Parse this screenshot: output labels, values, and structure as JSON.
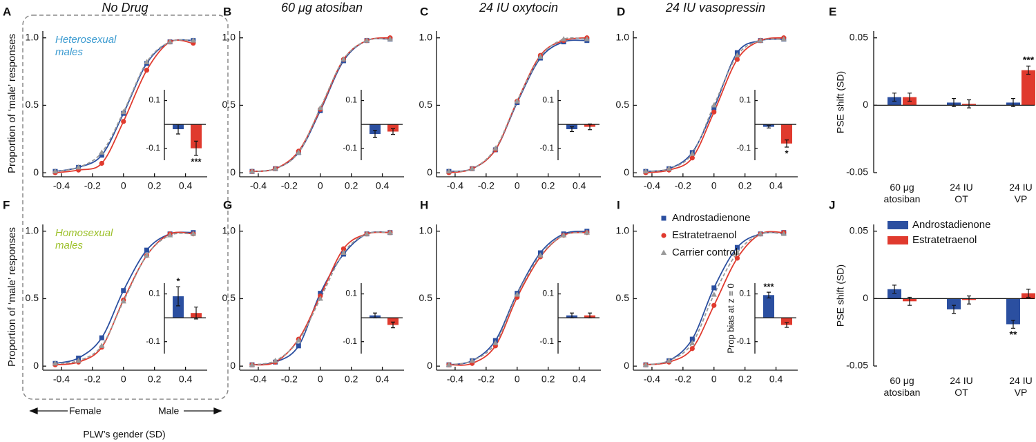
{
  "chart_data": [
    {
      "type": "line",
      "panel": "A",
      "title": "No Drug",
      "ylabel": "Proportion of ‘male’ responses",
      "annotation": "Heterosexual\nmales",
      "annotation_color": "#3a9ad0",
      "x": [
        -0.44,
        -0.29,
        -0.14,
        0,
        0.15,
        0.3,
        0.45
      ],
      "xlim": [
        -0.52,
        0.54
      ],
      "xticks": [
        -0.4,
        -0.2,
        0,
        0.2,
        0.4
      ],
      "ylim": [
        -0.03,
        1.05
      ],
      "yticks": [
        0,
        0.5,
        {
          "value": 1,
          "label": "1.0"
        }
      ],
      "series": [
        {
          "color": "#2b4fa0",
          "marker": "square",
          "values": [
            0.01,
            0.04,
            0.13,
            0.44,
            0.81,
            0.97,
            0.98
          ]
        },
        {
          "color": "#e03a2e",
          "marker": "circle",
          "values": [
            0,
            0.02,
            0.07,
            0.38,
            0.76,
            0.97,
            0.96
          ]
        },
        {
          "color": "#999999",
          "marker": "triangle",
          "dash": true,
          "values": [
            0.01,
            0.04,
            0.15,
            0.45,
            0.82,
            0.97,
            0.98
          ]
        }
      ],
      "inset": {
        "ylim": [
          -0.15,
          0.145
        ],
        "yticks": [
          -0.1,
          0.1
        ],
        "colors": [
          "#2b4fa0",
          "#e03a2e"
        ],
        "values": [
          -0.02,
          -0.1
        ],
        "errors": [
          0.02,
          0.03
        ],
        "stars": [
          null,
          "***"
        ]
      }
    },
    {
      "type": "line",
      "panel": "B",
      "title": "60 μg atosiban",
      "x": [
        -0.44,
        -0.29,
        -0.14,
        0,
        0.15,
        0.3,
        0.45
      ],
      "xlim": [
        -0.52,
        0.54
      ],
      "xticks": [
        -0.4,
        -0.2,
        0,
        0.2,
        0.4
      ],
      "ylim": [
        -0.03,
        1.05
      ],
      "yticks": [
        0,
        0.5,
        {
          "value": 1,
          "label": "1.0"
        }
      ],
      "series": [
        {
          "color": "#2b4fa0",
          "marker": "square",
          "values": [
            0.01,
            0.03,
            0.15,
            0.46,
            0.83,
            0.98,
            0.99
          ]
        },
        {
          "color": "#e03a2e",
          "marker": "circle",
          "values": [
            0.01,
            0.03,
            0.16,
            0.47,
            0.84,
            0.98,
            1.0
          ]
        },
        {
          "color": "#999999",
          "marker": "triangle",
          "dash": true,
          "values": [
            0.01,
            0.03,
            0.15,
            0.48,
            0.84,
            0.98,
            0.99
          ]
        }
      ],
      "inset": {
        "ylim": [
          -0.15,
          0.145
        ],
        "yticks": [
          -0.1,
          0.1
        ],
        "colors": [
          "#2b4fa0",
          "#e03a2e"
        ],
        "values": [
          -0.04,
          -0.03
        ],
        "errors": [
          0.015,
          0.012
        ],
        "stars": [
          null,
          null
        ]
      }
    },
    {
      "type": "line",
      "panel": "C",
      "title": "24 IU oxytocin",
      "x": [
        -0.44,
        -0.29,
        -0.14,
        0,
        0.15,
        0.3,
        0.45
      ],
      "xlim": [
        -0.52,
        0.54
      ],
      "xticks": [
        -0.4,
        -0.2,
        0,
        0.2,
        0.4
      ],
      "ylim": [
        -0.03,
        1.05
      ],
      "yticks": [
        0,
        0.5,
        {
          "value": 1,
          "label": "1.0"
        }
      ],
      "series": [
        {
          "color": "#2b4fa0",
          "marker": "square",
          "values": [
            0.01,
            0.03,
            0.17,
            0.52,
            0.85,
            0.97,
            0.98
          ]
        },
        {
          "color": "#e03a2e",
          "marker": "circle",
          "values": [
            0,
            0.03,
            0.17,
            0.53,
            0.87,
            0.98,
            1.0
          ]
        },
        {
          "color": "#999999",
          "marker": "triangle",
          "dash": true,
          "values": [
            0.01,
            0.03,
            0.18,
            0.53,
            0.86,
            0.99,
            0.99
          ]
        }
      ],
      "inset": {
        "ylim": [
          -0.15,
          0.145
        ],
        "yticks": [
          -0.1,
          0.1
        ],
        "colors": [
          "#2b4fa0",
          "#e03a2e"
        ],
        "values": [
          -0.02,
          -0.01
        ],
        "errors": [
          0.01,
          0.012
        ],
        "stars": [
          null,
          null
        ]
      }
    },
    {
      "type": "line",
      "panel": "D",
      "title": "24 IU vasopressin",
      "x": [
        -0.44,
        -0.29,
        -0.14,
        0,
        0.15,
        0.3,
        0.45
      ],
      "xlim": [
        -0.52,
        0.54
      ],
      "xticks": [
        -0.4,
        -0.2,
        0,
        0.2,
        0.4
      ],
      "ylim": [
        -0.03,
        1.05
      ],
      "yticks": [
        0,
        0.5,
        {
          "value": 1,
          "label": "1.0"
        }
      ],
      "series": [
        {
          "color": "#2b4fa0",
          "marker": "square",
          "values": [
            0.01,
            0.03,
            0.15,
            0.48,
            0.89,
            0.98,
            0.99
          ]
        },
        {
          "color": "#e03a2e",
          "marker": "circle",
          "values": [
            0,
            0.02,
            0.11,
            0.45,
            0.84,
            0.98,
            1.0
          ]
        },
        {
          "color": "#999999",
          "marker": "triangle",
          "dash": true,
          "values": [
            0.01,
            0.03,
            0.14,
            0.5,
            0.87,
            0.98,
            0.99
          ]
        }
      ],
      "inset": {
        "ylim": [
          -0.15,
          0.145
        ],
        "yticks": [
          -0.1,
          0.1
        ],
        "colors": [
          "#2b4fa0",
          "#e03a2e"
        ],
        "values": [
          -0.01,
          -0.08
        ],
        "errors": [
          0.005,
          0.015
        ],
        "stars": [
          null,
          "*"
        ]
      }
    },
    {
      "type": "bar",
      "panel": "E",
      "ylabel": "PSE shift (SD)",
      "categories": [
        "60 μg\natosiban",
        "24 IU\nOT",
        "24 IU\nVP"
      ],
      "ylim": [
        -0.05,
        0.055
      ],
      "yticks": [
        -0.05,
        0,
        0.05
      ],
      "series": [
        {
          "color": "#2b4fa0",
          "values": [
            0.006,
            0.002,
            0.002
          ],
          "errors": [
            0.003,
            0.003,
            0.003
          ],
          "stars": [
            null,
            null,
            null
          ]
        },
        {
          "color": "#e03a2e",
          "values": [
            0.006,
            0.001,
            0.026
          ],
          "errors": [
            0.003,
            0.003,
            0.003
          ],
          "stars": [
            null,
            null,
            "***"
          ]
        }
      ]
    },
    {
      "type": "line",
      "panel": "F",
      "ylabel": "Proportion of ‘male’ responses",
      "annotation": "Homosexual\nmales",
      "annotation_color": "#9cc02a",
      "xlabel": "PLW’s gender (SD)",
      "arrow_left": "Female",
      "arrow_right": "Male",
      "x": [
        -0.44,
        -0.29,
        -0.14,
        0,
        0.15,
        0.3,
        0.45
      ],
      "xlim": [
        -0.52,
        0.54
      ],
      "xticks": [
        -0.4,
        -0.2,
        0,
        0.2,
        0.4
      ],
      "ylim": [
        -0.03,
        1.05
      ],
      "yticks": [
        0,
        0.5,
        {
          "value": 1,
          "label": "1.0"
        }
      ],
      "series": [
        {
          "color": "#2b4fa0",
          "marker": "square",
          "values": [
            0.02,
            0.06,
            0.21,
            0.56,
            0.86,
            0.98,
            0.99
          ]
        },
        {
          "color": "#e03a2e",
          "marker": "circle",
          "values": [
            0.01,
            0.03,
            0.14,
            0.49,
            0.82,
            0.98,
            0.98
          ]
        },
        {
          "color": "#999999",
          "marker": "triangle",
          "dash": true,
          "values": [
            0.02,
            0.04,
            0.15,
            0.48,
            0.82,
            0.97,
            0.98
          ]
        }
      ],
      "inset": {
        "ylim": [
          -0.15,
          0.145
        ],
        "yticks": [
          -0.1,
          0.1
        ],
        "colors": [
          "#2b4fa0",
          "#e03a2e"
        ],
        "values": [
          0.09,
          0.02
        ],
        "errors": [
          0.04,
          0.025
        ],
        "stars": [
          "*",
          null
        ]
      }
    },
    {
      "type": "line",
      "panel": "G",
      "x": [
        -0.44,
        -0.29,
        -0.14,
        0,
        0.15,
        0.3,
        0.45
      ],
      "xlim": [
        -0.52,
        0.54
      ],
      "xticks": [
        -0.4,
        -0.2,
        0,
        0.2,
        0.4
      ],
      "ylim": [
        -0.03,
        1.05
      ],
      "yticks": [
        0,
        0.5,
        {
          "value": 1,
          "label": "1.0"
        }
      ],
      "series": [
        {
          "color": "#2b4fa0",
          "marker": "square",
          "values": [
            0.01,
            0.03,
            0.15,
            0.54,
            0.83,
            0.98,
            0.99
          ]
        },
        {
          "color": "#e03a2e",
          "marker": "circle",
          "values": [
            0.01,
            0.03,
            0.2,
            0.52,
            0.87,
            0.98,
            0.99
          ]
        },
        {
          "color": "#999999",
          "marker": "triangle",
          "dash": true,
          "values": [
            0.01,
            0.04,
            0.19,
            0.5,
            0.84,
            0.98,
            0.99
          ]
        }
      ],
      "inset": {
        "ylim": [
          -0.15,
          0.145
        ],
        "yticks": [
          -0.1,
          0.1
        ],
        "colors": [
          "#2b4fa0",
          "#e03a2e"
        ],
        "values": [
          0.01,
          -0.03
        ],
        "errors": [
          0.01,
          0.012
        ],
        "stars": [
          null,
          null
        ]
      }
    },
    {
      "type": "line",
      "panel": "H",
      "x": [
        -0.44,
        -0.29,
        -0.14,
        0,
        0.15,
        0.3,
        0.45
      ],
      "xlim": [
        -0.52,
        0.54
      ],
      "xticks": [
        -0.4,
        -0.2,
        0,
        0.2,
        0.4
      ],
      "ylim": [
        -0.03,
        1.05
      ],
      "yticks": [
        0,
        0.5,
        {
          "value": 1,
          "label": "1.0"
        }
      ],
      "series": [
        {
          "color": "#2b4fa0",
          "marker": "square",
          "values": [
            0.01,
            0.04,
            0.19,
            0.54,
            0.84,
            0.98,
            1.0
          ]
        },
        {
          "color": "#e03a2e",
          "marker": "circle",
          "values": [
            0.01,
            0.02,
            0.15,
            0.51,
            0.81,
            0.97,
            0.99
          ]
        },
        {
          "color": "#999999",
          "marker": "triangle",
          "dash": true,
          "values": [
            0.01,
            0.04,
            0.17,
            0.53,
            0.82,
            0.97,
            0.99
          ]
        }
      ],
      "inset": {
        "ylim": [
          -0.15,
          0.145
        ],
        "yticks": [
          -0.1,
          0.1
        ],
        "colors": [
          "#2b4fa0",
          "#e03a2e"
        ],
        "values": [
          0.01,
          0.01
        ],
        "errors": [
          0.01,
          0.01
        ],
        "stars": [
          null,
          null
        ]
      }
    },
    {
      "type": "line",
      "panel": "I",
      "legend": true,
      "x": [
        -0.44,
        -0.29,
        -0.14,
        0,
        0.15,
        0.3,
        0.45
      ],
      "xlim": [
        -0.52,
        0.54
      ],
      "xticks": [
        -0.4,
        -0.2,
        0,
        0.2,
        0.4
      ],
      "ylim": [
        -0.03,
        1.05
      ],
      "yticks": [
        0,
        0.5,
        {
          "value": 1,
          "label": "1.0"
        }
      ],
      "series": [
        {
          "name": "Androstadienone",
          "color": "#2b4fa0",
          "marker": "square",
          "values": [
            0.01,
            0.04,
            0.2,
            0.58,
            0.88,
            0.98,
            0.99
          ]
        },
        {
          "name": "Estratetraenol",
          "color": "#e03a2e",
          "marker": "circle",
          "values": [
            0.01,
            0.03,
            0.13,
            0.45,
            0.8,
            0.98,
            0.99
          ]
        },
        {
          "name": "Carrier control",
          "color": "#999999",
          "marker": "triangle",
          "dash": true,
          "values": [
            0.01,
            0.04,
            0.17,
            0.53,
            0.84,
            0.98,
            0.98
          ]
        }
      ],
      "inset": {
        "ylabel": "Prop bias at z = 0",
        "ylim": [
          -0.15,
          0.145
        ],
        "yticks": [
          -0.1,
          0.1
        ],
        "colors": [
          "#2b4fa0",
          "#e03a2e"
        ],
        "values": [
          0.095,
          -0.03
        ],
        "errors": [
          0.012,
          0.01
        ],
        "stars": [
          "***",
          null
        ]
      }
    },
    {
      "type": "bar",
      "panel": "J",
      "ylabel": "PSE shift (SD)",
      "legend": true,
      "categories": [
        "60 μg\natosiban",
        "24 IU\nOT",
        "24 IU\nVP"
      ],
      "ylim": [
        -0.05,
        0.055
      ],
      "yticks": [
        -0.05,
        0,
        0.05
      ],
      "series": [
        {
          "name": "Androstadienone",
          "color": "#2b4fa0",
          "values": [
            0.007,
            -0.008,
            -0.019
          ],
          "errors": [
            0.003,
            0.003,
            0.003
          ],
          "stars": [
            null,
            null,
            "**"
          ]
        },
        {
          "name": "Estratetraenol",
          "color": "#e03a2e",
          "values": [
            -0.002,
            -0.001,
            0.004
          ],
          "errors": [
            0.003,
            0.003,
            0.003
          ],
          "stars": [
            null,
            null,
            null
          ]
        }
      ]
    }
  ]
}
